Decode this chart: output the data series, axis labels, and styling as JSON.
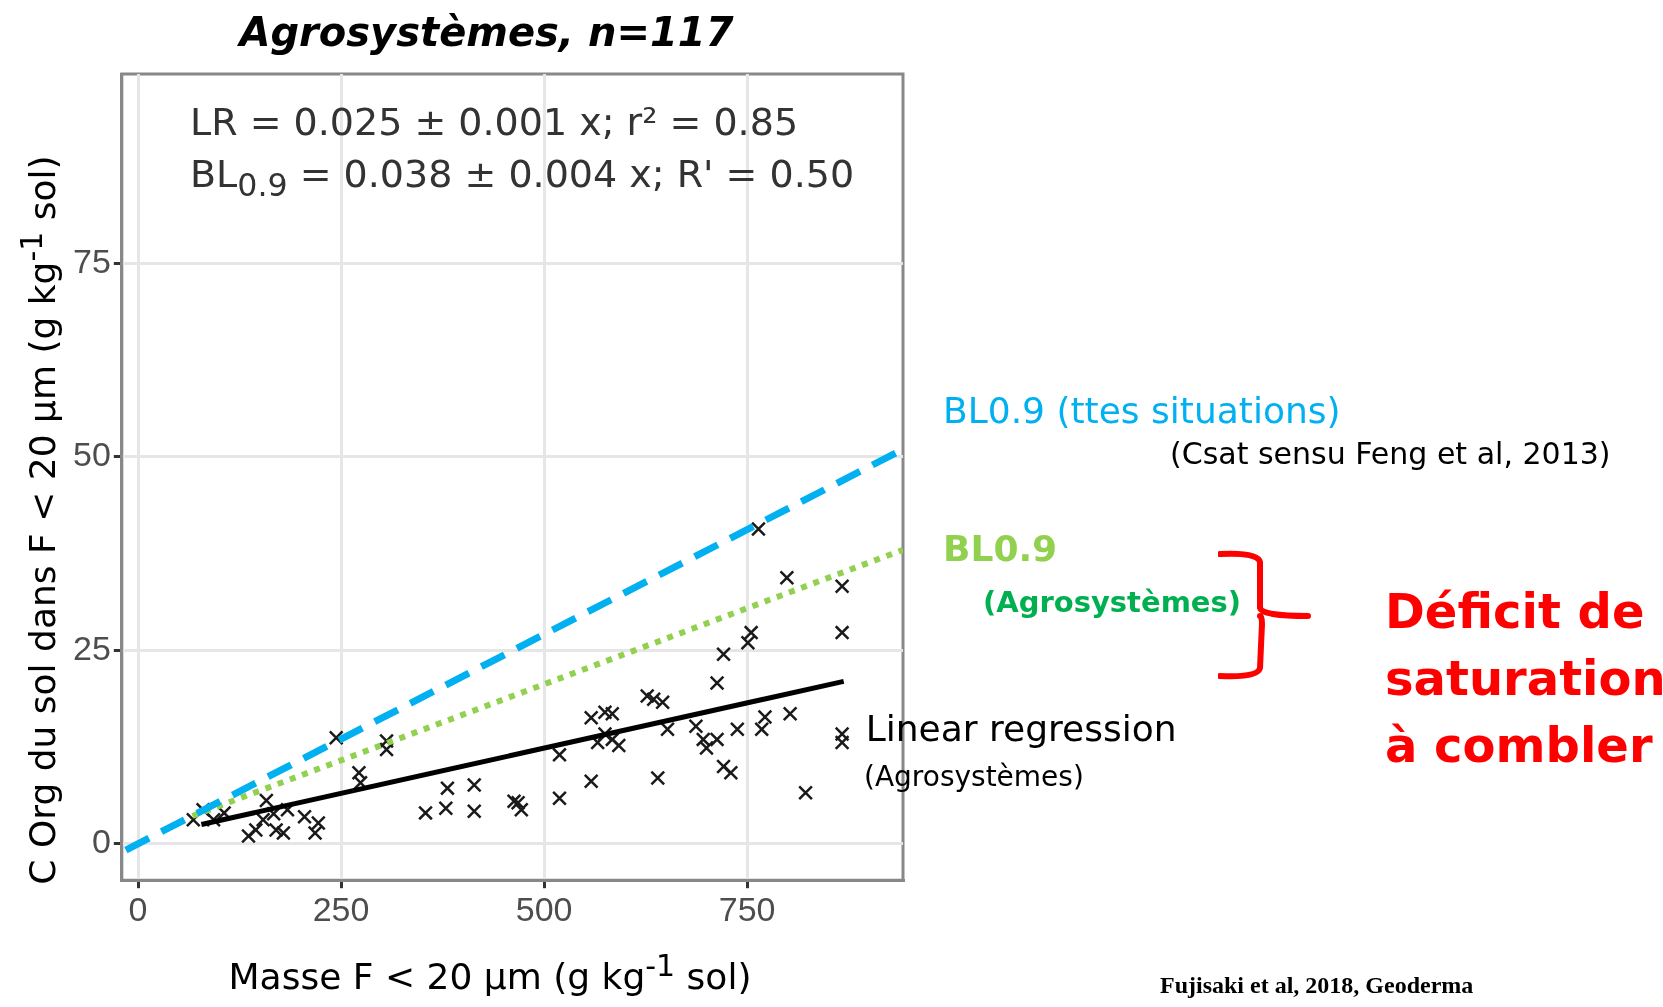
{
  "chart_data": {
    "type": "scatter",
    "title": "Agrosystèmes, n=117",
    "xlabel": "Masse F < 20 µm (g kg$^{-1}$ sol)",
    "ylabel": "C Org du sol  dans F < 20 µm (g kg$^{-1}$ sol)",
    "xlim": [
      -20,
      942
    ],
    "ylim": [
      -4.7,
      99.5
    ],
    "xticks": [
      0,
      250,
      500,
      750
    ],
    "yticks": [
      0,
      25,
      50,
      75
    ],
    "grid": true,
    "series": [
      {
        "type": "scatter",
        "color": "#1a1a1a",
        "marker": "cross",
        "x": [
          244,
          306,
          306,
          272,
          274,
          354,
          381,
          379,
          414,
          414,
          463,
          80,
          93,
          145,
          154,
          170,
          179,
          167,
          184,
          158,
          205,
          222,
          218,
          136,
          68,
          106,
          764,
          799,
          867,
          867,
          755,
          751,
          721,
          713,
          635,
          627,
          646,
          575,
          558,
          584,
          575,
          584,
          592,
          566,
          652,
          687,
          696,
          713,
          700,
          738,
          772,
          768,
          803,
          867,
          867,
          721,
          730,
          822,
          640,
          558,
          519,
          519,
          468,
          472
        ],
        "values": [
          13.7,
          13.3,
          12.2,
          9.2,
          7.9,
          4.0,
          7.2,
          4.6,
          7.6,
          4.2,
          5.5,
          4.4,
          3.1,
          1.8,
          3.1,
          1.8,
          1.4,
          3.9,
          4.4,
          5.6,
          3.5,
          2.7,
          1.4,
          1.0,
          3.1,
          4.0,
          40.7,
          34.4,
          33.3,
          27.3,
          27.3,
          26.0,
          24.5,
          20.8,
          18.7,
          19.1,
          18.3,
          17.0,
          16.3,
          16.8,
          14.2,
          13.5,
          12.7,
          13.1,
          14.8,
          15.2,
          13.5,
          13.5,
          12.4,
          14.8,
          16.4,
          14.8,
          16.8,
          14.2,
          13.1,
          10.0,
          9.2,
          6.6,
          8.5,
          8.1,
          5.9,
          11.5,
          5.3,
          4.4
        ]
      },
      {
        "type": "line",
        "name": "BL0.9 (ttes situations)",
        "color": "#00b0f0",
        "marker": "none",
        "line_style": "dashed",
        "x": [
          -15,
          942
        ],
        "values": [
          -0.8,
          51
        ]
      },
      {
        "type": "line",
        "name": "BL0.9",
        "color": "#92d050",
        "marker": "none",
        "line_style": "dotted",
        "x": [
          67,
          942
        ],
        "values": [
          3.6,
          38
        ]
      },
      {
        "type": "line",
        "name": "Linear regression",
        "color": "#000000",
        "marker": "none",
        "line_style": "solid",
        "x": [
          78,
          869
        ],
        "values": [
          2.5,
          21
        ]
      }
    ],
    "annotations": [
      "LR = 0.025 ± 0.001 x; r² = 0.85",
      "BL$_{0.9}$ = 0.038 ± 0.004 x; R' = 0.50",
      "(Csat sensu Feng et al, 2013)",
      "(Agrosystèmes)",
      "(Agrosystèmes)",
      "Déficit de saturation à combler",
      "Fujisaki et al, 2018, Geoderma"
    ]
  }
}
